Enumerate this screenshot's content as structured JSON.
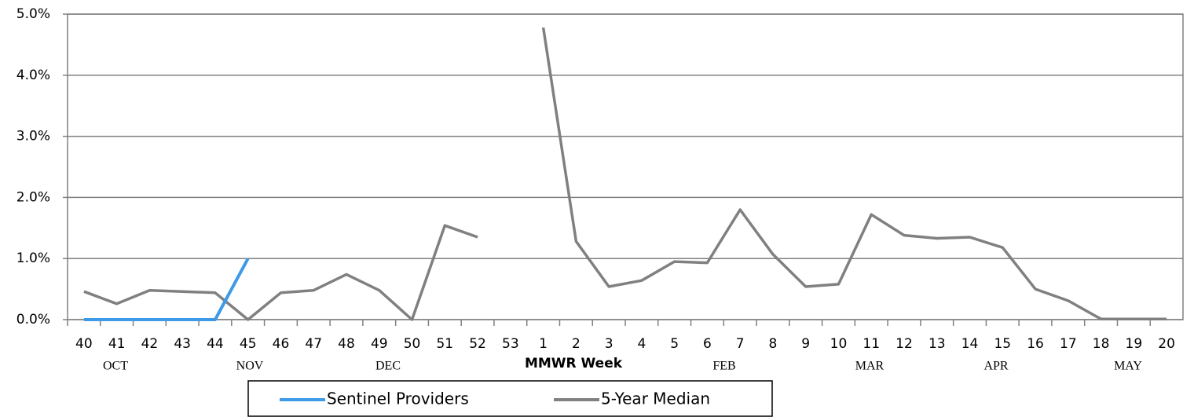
{
  "chart_data": {
    "type": "line",
    "x_label": "MMWR Week",
    "categories": [
      "40",
      "41",
      "42",
      "43",
      "44",
      "45",
      "46",
      "47",
      "48",
      "49",
      "50",
      "51",
      "52",
      "53",
      "1",
      "2",
      "3",
      "4",
      "5",
      "6",
      "7",
      "8",
      "9",
      "10",
      "11",
      "12",
      "13",
      "14",
      "15",
      "16",
      "17",
      "18",
      "19",
      "20"
    ],
    "month_labels": [
      "OCT",
      "NOV",
      "DEC",
      "FEB",
      "MAR",
      "APR",
      "MAY"
    ],
    "series": [
      {
        "name": "Sentinel Providers",
        "color": "#3e9ae8",
        "values": [
          0,
          0,
          0,
          0,
          0,
          1.0,
          null,
          null,
          null,
          null,
          null,
          null,
          null,
          null,
          null,
          null,
          null,
          null,
          null,
          null,
          null,
          null,
          null,
          null,
          null,
          null,
          null,
          null,
          null,
          null,
          null,
          null,
          null,
          null
        ]
      },
      {
        "name": "5-Year Median",
        "color": "#808080",
        "values": [
          0.46,
          0.26,
          0.48,
          0.46,
          0.44,
          0.0,
          0.44,
          0.48,
          0.74,
          0.48,
          0.0,
          1.54,
          1.35,
          null,
          4.78,
          1.28,
          0.54,
          0.64,
          0.95,
          0.93,
          1.8,
          1.07,
          0.54,
          0.58,
          1.72,
          1.38,
          1.33,
          1.35,
          1.18,
          0.5,
          0.31,
          0.01,
          0.01,
          0.01
        ]
      }
    ],
    "ylim": [
      0,
      5
    ],
    "yticks": [
      {
        "value": 0,
        "label": "0.0%"
      },
      {
        "value": 1,
        "label": "1.0%"
      },
      {
        "value": 2,
        "label": "2.0%"
      },
      {
        "value": 3,
        "label": "3.0%"
      },
      {
        "value": 4,
        "label": "4.0%"
      },
      {
        "value": 5,
        "label": "5.0%"
      }
    ],
    "grid": true
  }
}
